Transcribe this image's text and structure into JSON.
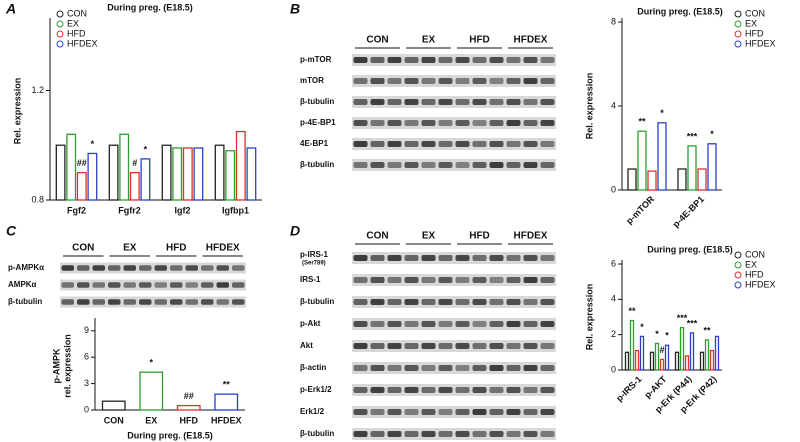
{
  "chart_data": [
    {
      "type": "bar",
      "panel": "A",
      "title": "During preg. (E18.5)",
      "y_label": "Rel. expression",
      "categories": [
        "Fgf2",
        "Fgfr2",
        "Igf2",
        "Igfbp1"
      ],
      "series": [
        {
          "name": "CON",
          "color": "#222222",
          "values": [
            1.0,
            1.0,
            1.0,
            1.0
          ]
        },
        {
          "name": "EX",
          "color": "#2ca02c",
          "values": [
            1.04,
            1.04,
            0.99,
            0.98
          ]
        },
        {
          "name": "HFD",
          "color": "#e03030",
          "values": [
            0.9,
            0.9,
            0.99,
            1.05
          ],
          "annotations": [
            "##",
            "#",
            null,
            null
          ]
        },
        {
          "name": "HFDEX",
          "color": "#2a3fd0",
          "values": [
            0.97,
            0.95,
            0.99,
            0.99
          ],
          "annotations": [
            "*",
            "*",
            null,
            null
          ]
        }
      ],
      "ylim": [
        0.8,
        1.45
      ],
      "yticks": [
        0.8,
        1.2
      ]
    },
    {
      "type": "bar",
      "panel": "B",
      "title": "During preg. (E18.5)",
      "y_label": "Rel. expression",
      "categories": [
        "p-mTOR",
        "p-4E-BP1"
      ],
      "series": [
        {
          "name": "CON",
          "color": "#222222",
          "values": [
            1.0,
            1.0
          ]
        },
        {
          "name": "EX",
          "color": "#2ca02c",
          "values": [
            2.8,
            2.1
          ],
          "annotations": [
            "**",
            "***"
          ]
        },
        {
          "name": "HFD",
          "color": "#e03030",
          "values": [
            0.9,
            1.0
          ]
        },
        {
          "name": "HFDEX",
          "color": "#2a3fd0",
          "values": [
            3.2,
            2.2
          ],
          "annotations": [
            "*",
            "*"
          ]
        }
      ],
      "ylim": [
        0,
        8
      ],
      "yticks": [
        0,
        4,
        8
      ]
    },
    {
      "type": "bar",
      "panel": "C",
      "y_label": "p-AMPK",
      "y_label2": "rel. expression",
      "x_label": "During preg. (E18.5)",
      "categories": [
        "CON",
        "EX",
        "HFD",
        "HFDEX"
      ],
      "values": [
        1.0,
        4.3,
        0.5,
        1.8
      ],
      "colors": [
        "#222222",
        "#2ca02c",
        "#e03030",
        "#2a3fd0"
      ],
      "annotations": [
        null,
        "*",
        "##",
        "**"
      ],
      "ylim": [
        0,
        10
      ],
      "yticks": [
        0,
        3,
        6,
        9
      ]
    },
    {
      "type": "bar",
      "panel": "D",
      "title": "During preg. (E18.5)",
      "y_label": "Rel. expression",
      "categories": [
        "p-IRS-1",
        "p-AKT",
        "p-Erk (P44)",
        "p-Erk (P42)"
      ],
      "series": [
        {
          "name": "CON",
          "color": "#222222",
          "values": [
            1.0,
            1.0,
            1.0,
            1.0
          ]
        },
        {
          "name": "EX",
          "color": "#2ca02c",
          "values": [
            2.8,
            1.5,
            2.4,
            1.7
          ],
          "annotations": [
            "**",
            "*",
            "***",
            "**"
          ]
        },
        {
          "name": "HFD",
          "color": "#e03030",
          "values": [
            1.1,
            0.6,
            0.8,
            1.1
          ],
          "annotations": [
            null,
            "#",
            null,
            null
          ]
        },
        {
          "name": "HFDEX",
          "color": "#2a3fd0",
          "values": [
            1.9,
            1.4,
            2.1,
            1.9
          ],
          "annotations": [
            "*",
            "*",
            "***",
            null
          ]
        }
      ],
      "ylim": [
        0,
        6
      ],
      "yticks": [
        0,
        2,
        4,
        6
      ]
    }
  ],
  "blots": [
    {
      "groups": [
        "CON",
        "EX",
        "HFD",
        "HFDEX"
      ],
      "rows": [
        "p-mTOR",
        "mTOR",
        "β-tubulin",
        "p-4E-BP1",
        "4E-BP1",
        "β-tubulin"
      ]
    },
    {
      "groups": [
        "CON",
        "EX",
        "HFD",
        "HFDEX"
      ],
      "rows": [
        "p-AMPKα",
        "AMPKα",
        "β-tubulin"
      ]
    },
    {
      "groups": [
        "CON",
        "EX",
        "HFD",
        "HFDEX"
      ],
      "rows": [
        "p-IRS-1",
        "IRS-1",
        "β-tubulin",
        "p-Akt",
        "Akt",
        "β-actin",
        "p-Erk1/2",
        "Erk1/2",
        "β-tubulin"
      ],
      "row_note": "(Ser789)"
    }
  ]
}
